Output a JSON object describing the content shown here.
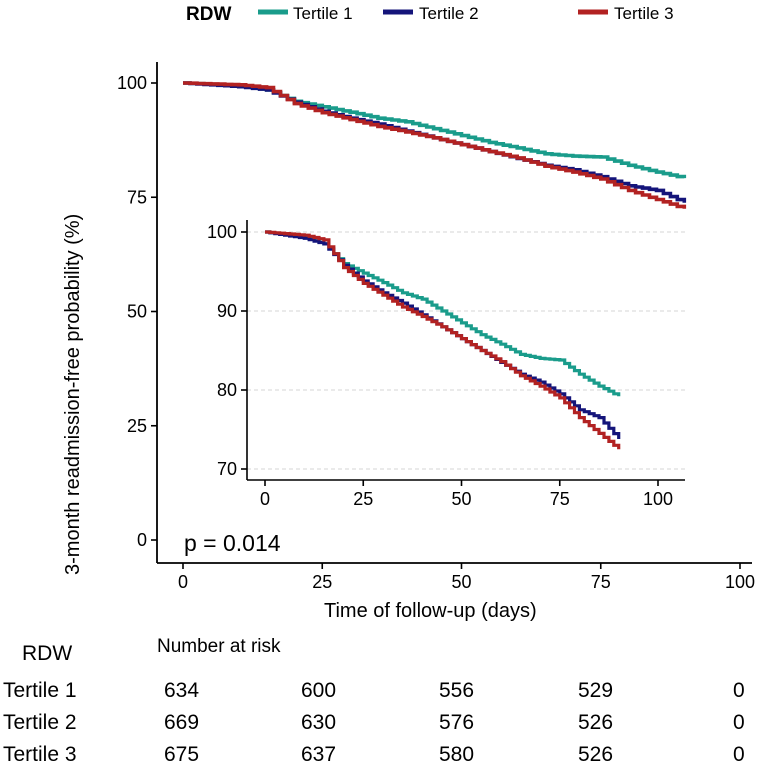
{
  "legend": {
    "title": "RDW",
    "entries": [
      "Tertile 1",
      "Tertile 2",
      "Tertile 3"
    ]
  },
  "annotation": "p = 0.014",
  "colors": {
    "tertile1": "#1a9c8b",
    "tertile2": "#14147a",
    "tertile3": "#b22222"
  },
  "chart_data": [
    {
      "type": "line",
      "title": "",
      "xlabel": "Time of follow-up (days)",
      "ylabel": "3-month readmission-free  probability (%)",
      "xlim": [
        0,
        100
      ],
      "ylim": [
        0,
        100
      ],
      "x_ticks": [
        0,
        25,
        50,
        75,
        100
      ],
      "y_ticks": [
        0,
        25,
        50,
        75,
        100
      ],
      "series": [
        {
          "name": "Tertile 1",
          "x": [
            0,
            5,
            10,
            15,
            20,
            25,
            30,
            35,
            40,
            45,
            50,
            55,
            60,
            65,
            70,
            75,
            80,
            85,
            90
          ],
          "values": [
            100,
            99.7,
            99.3,
            98.5,
            96,
            94.8,
            93.6,
            92.3,
            91.5,
            90,
            88.5,
            87,
            85.8,
            84.5,
            84,
            83.8,
            82,
            80.5,
            79.2
          ]
        },
        {
          "name": "Tertile 2",
          "x": [
            0,
            5,
            10,
            15,
            20,
            25,
            30,
            35,
            40,
            45,
            50,
            55,
            60,
            65,
            70,
            75,
            80,
            85,
            90
          ],
          "values": [
            100,
            99.6,
            99.2,
            98.5,
            95.8,
            93.8,
            92.3,
            91,
            89.5,
            88,
            86.5,
            85,
            83.5,
            82,
            81,
            79.5,
            77.5,
            76.5,
            73.8
          ]
        },
        {
          "name": "Tertile 3",
          "x": [
            0,
            5,
            10,
            15,
            20,
            25,
            30,
            35,
            40,
            45,
            50,
            55,
            60,
            65,
            70,
            75,
            80,
            85,
            90
          ],
          "values": [
            100,
            99.8,
            99.6,
            99,
            95.5,
            93.5,
            92,
            90.5,
            89.3,
            88,
            86.5,
            85,
            83.6,
            81.8,
            80.5,
            79,
            76.5,
            74.5,
            72.5
          ]
        }
      ]
    },
    {
      "type": "line",
      "title": "",
      "xlabel": "",
      "ylabel": "",
      "xlim": [
        0,
        100
      ],
      "ylim": [
        70,
        100
      ],
      "x_ticks": [
        0,
        25,
        50,
        75,
        100
      ],
      "y_ticks": [
        70,
        80,
        90,
        100
      ],
      "grid": true,
      "series": [
        {
          "name": "Tertile 1",
          "x": [
            0,
            5,
            10,
            15,
            20,
            25,
            30,
            35,
            40,
            45,
            50,
            55,
            60,
            65,
            70,
            75,
            80,
            85,
            90
          ],
          "values": [
            100,
            99.7,
            99.3,
            98.5,
            96,
            94.8,
            93.6,
            92.3,
            91.5,
            90,
            88.5,
            87,
            85.8,
            84.5,
            84,
            83.8,
            82,
            80.5,
            79.2
          ]
        },
        {
          "name": "Tertile 2",
          "x": [
            0,
            5,
            10,
            15,
            20,
            25,
            30,
            35,
            40,
            45,
            50,
            55,
            60,
            65,
            70,
            75,
            80,
            85,
            90
          ],
          "values": [
            100,
            99.6,
            99.2,
            98.5,
            95.8,
            93.8,
            92.3,
            91,
            89.5,
            88,
            86.5,
            85,
            83.5,
            82,
            81,
            79.5,
            77.5,
            76.5,
            73.8
          ]
        },
        {
          "name": "Tertile 3",
          "x": [
            0,
            5,
            10,
            15,
            20,
            25,
            30,
            35,
            40,
            45,
            50,
            55,
            60,
            65,
            70,
            75,
            80,
            85,
            90
          ],
          "values": [
            100,
            99.8,
            99.6,
            99,
            95.5,
            93.5,
            92,
            90.5,
            89.3,
            88,
            86.5,
            85,
            83.6,
            81.8,
            80.5,
            79,
            76.5,
            74.5,
            72.5
          ]
        }
      ]
    }
  ],
  "risk_table": {
    "group_label": "RDW",
    "header": "Number at risk",
    "rows": [
      {
        "label": "Tertile 1",
        "values": [
          "634",
          "600",
          "556",
          "529",
          "0"
        ]
      },
      {
        "label": "Tertile 2",
        "values": [
          "669",
          "630",
          "576",
          "526",
          "0"
        ]
      },
      {
        "label": "Tertile 3",
        "values": [
          "675",
          "637",
          "580",
          "526",
          "0"
        ]
      }
    ]
  }
}
